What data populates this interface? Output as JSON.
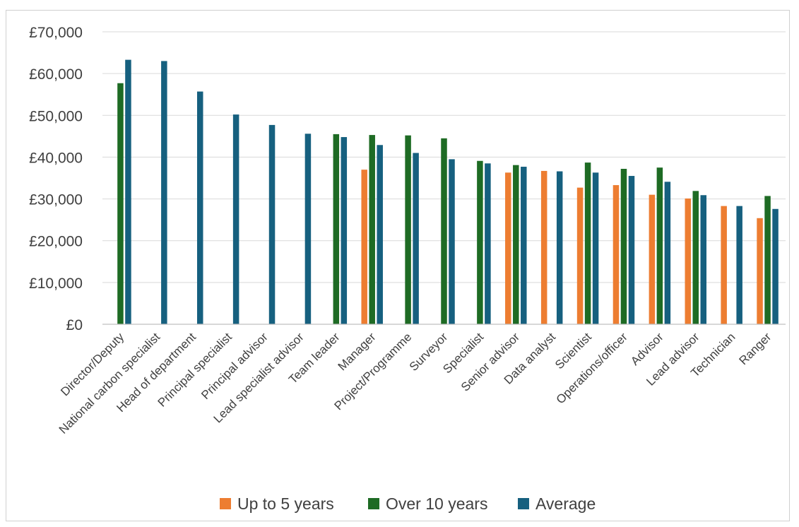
{
  "chart_data": {
    "type": "bar",
    "title": "",
    "xlabel": "",
    "ylabel": "",
    "ylim": [
      0,
      70000
    ],
    "y_ticks": [
      0,
      10000,
      20000,
      30000,
      40000,
      50000,
      60000,
      70000
    ],
    "y_tick_labels": [
      "£0",
      "£10,000",
      "£20,000",
      "£30,000",
      "£40,000",
      "£50,000",
      "£60,000",
      "£70,000"
    ],
    "grid": true,
    "legend_position": "bottom",
    "categories": [
      "Director/Deputy",
      "National carbon specialist",
      "Head of department",
      "Principal specialist",
      "Principal advisor",
      "Lead specialist advisor",
      "Team leader",
      "Manager",
      "Project/Programme",
      "Surveyor",
      "Specialist",
      "Senior advisor",
      "Data analyst",
      "Scientist",
      "Operations/officer",
      "Advisor",
      "Lead advisor",
      "Technician",
      "Ranger"
    ],
    "series": [
      {
        "name": "Up to 5 years",
        "color": "#ED7D31",
        "values": [
          null,
          null,
          null,
          null,
          null,
          null,
          null,
          37000,
          null,
          null,
          null,
          36300,
          36700,
          32700,
          33300,
          31000,
          30100,
          28300,
          25400
        ]
      },
      {
        "name": "Over 10 years",
        "color": "#1E6B24",
        "values": [
          57700,
          null,
          null,
          null,
          null,
          null,
          45500,
          45300,
          45200,
          44500,
          39100,
          38100,
          null,
          38700,
          37200,
          37500,
          31900,
          null,
          30700
        ]
      },
      {
        "name": "Average",
        "color": "#16607F",
        "values": [
          63300,
          63000,
          55700,
          50200,
          47700,
          45600,
          44800,
          42900,
          41000,
          39500,
          38500,
          37700,
          36600,
          36300,
          35500,
          34100,
          30900,
          28300,
          27600
        ]
      }
    ]
  }
}
